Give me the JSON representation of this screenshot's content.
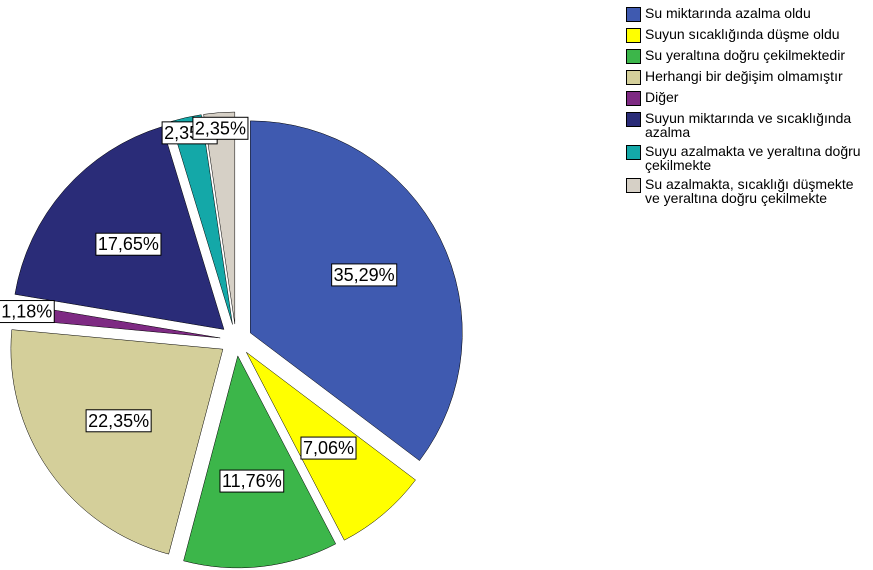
{
  "chart_data": {
    "type": "pie",
    "categories": [
      "Su miktarında azalma oldu",
      "Suyun sıcaklığında düşme oldu",
      "Su yeraltına doğru çekilmektedir",
      "Herhangi bir değişim olmamıştır",
      "Diğer",
      "Suyun miktarında ve sıcaklığında azalma",
      "Suyu azalmakta ve yeraltına doğru çekilmekte",
      "Su azalmakta, sıcaklığı düşmekte ve yeraltına doğru çekilmekte"
    ],
    "values": [
      35.29,
      7.06,
      11.76,
      22.35,
      1.18,
      17.65,
      2.35,
      2.35
    ],
    "value_labels": [
      "35,29%",
      "7,06%",
      "11,76%",
      "22,35%",
      "1,18%",
      "17,65%",
      "2,35%",
      "2,35%"
    ],
    "colors": [
      "#3f5ab0",
      "#ffff00",
      "#3cb64a",
      "#d4cf9a",
      "#7e2a83",
      "#2a2c78",
      "#14a8a8",
      "#d6d0c6"
    ],
    "legend": "top-right"
  }
}
